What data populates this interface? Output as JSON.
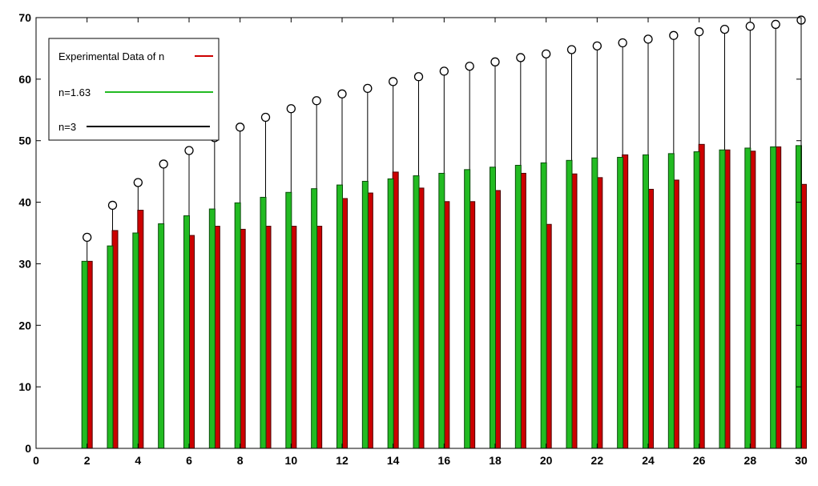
{
  "chart_data": {
    "type": "bar",
    "x": [
      2,
      3,
      4,
      5,
      6,
      7,
      8,
      9,
      10,
      11,
      12,
      13,
      14,
      15,
      16,
      17,
      18,
      19,
      20,
      21,
      22,
      23,
      24,
      25,
      26,
      27,
      28,
      29,
      30
    ],
    "series": [
      {
        "name": "Experimental Data of n",
        "kind": "bar",
        "color": "#cc0000",
        "values": [
          30.4,
          35.4,
          38.7,
          null,
          34.6,
          36.1,
          35.6,
          36.1,
          36.1,
          36.1,
          40.6,
          41.5,
          44.9,
          42.3,
          40.1,
          40.1,
          41.9,
          44.7,
          36.4,
          44.6,
          44.0,
          47.7,
          42.1,
          43.6,
          49.4,
          48.5,
          48.3,
          49.0,
          42.9
        ]
      },
      {
        "name": "n=1.63",
        "kind": "bar",
        "color": "#22bb22",
        "values": [
          30.4,
          32.9,
          35.0,
          36.5,
          37.8,
          38.9,
          39.9,
          40.8,
          41.6,
          42.2,
          42.8,
          43.4,
          43.8,
          44.3,
          44.7,
          45.3,
          45.7,
          46.0,
          46.4,
          46.8,
          47.2,
          47.3,
          47.7,
          47.9,
          48.2,
          48.5,
          48.8,
          49.0,
          49.2
        ]
      },
      {
        "name": "n=3",
        "kind": "stem",
        "color": "#000000",
        "values": [
          34.3,
          39.5,
          43.2,
          46.2,
          48.4,
          50.5,
          52.2,
          53.8,
          55.2,
          56.5,
          57.6,
          58.5,
          59.6,
          60.4,
          61.3,
          62.1,
          62.8,
          63.5,
          64.1,
          64.8,
          65.4,
          65.9,
          66.5,
          67.1,
          67.7,
          68.1,
          68.6,
          68.9,
          69.6
        ]
      }
    ],
    "xlim": [
      0,
      30
    ],
    "ylim": [
      0,
      70
    ],
    "xticks": [
      0,
      2,
      4,
      6,
      8,
      10,
      12,
      14,
      16,
      18,
      20,
      22,
      24,
      26,
      28,
      30
    ],
    "yticks": [
      0,
      10,
      20,
      30,
      40,
      50,
      60,
      70
    ],
    "grid": false,
    "legend_position": "top-left",
    "title": "",
    "xlabel": "",
    "ylabel": ""
  }
}
